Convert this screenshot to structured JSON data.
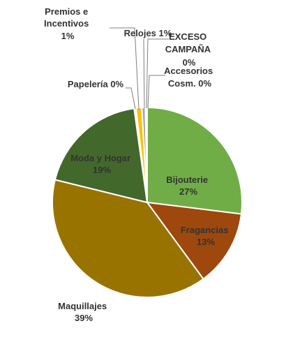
{
  "chart_data": {
    "type": "pie",
    "title": "",
    "legend": "none",
    "slices": [
      {
        "name": "Bijouterie",
        "value": 27,
        "label": "27%",
        "color": "#70ad47"
      },
      {
        "name": "Fragancias",
        "value": 13,
        "label": "13%",
        "color": "#9e480e"
      },
      {
        "name": "Maquillajes",
        "value": 39,
        "label": "39%",
        "color": "#997300"
      },
      {
        "name": "Moda y Hogar",
        "value": 19,
        "label": "19%",
        "color": "#43682b"
      },
      {
        "name": "Papelería",
        "value": 0.3,
        "label": "0%",
        "color": "#bdd7ee"
      },
      {
        "name": "Premios e Incentivos",
        "value": 1,
        "label": "1%",
        "color": "#ffc000"
      },
      {
        "name": "Relojes",
        "value": 0.6,
        "label": "1%",
        "color": "#a5a5a5"
      },
      {
        "name": "EXCESO CAMPAÑA",
        "value": 0.1,
        "label": "0%",
        "color": "#5b9bd5"
      },
      {
        "name": "Accesorios Cosm.",
        "value": 0.2,
        "label": "0%",
        "color": "#4472c4"
      }
    ],
    "label_text": {
      "bijouterie": [
        "Bijouterie",
        "27%"
      ],
      "fragancias": [
        "Fragancias",
        "13%"
      ],
      "maquillajes": [
        "Maquillajes",
        "39%"
      ],
      "moda": [
        "Moda y Hogar",
        "19%"
      ],
      "papeleria": [
        "Papelería 0%"
      ],
      "premios": [
        "Premios e",
        "Incentivos",
        "1%"
      ],
      "relojes": [
        "Relojes 1%"
      ],
      "exceso": [
        "EXCESO",
        "CAMPAÑA",
        "0%"
      ],
      "accesorios": [
        "Accesorios",
        "Cosm. 0%"
      ]
    }
  }
}
